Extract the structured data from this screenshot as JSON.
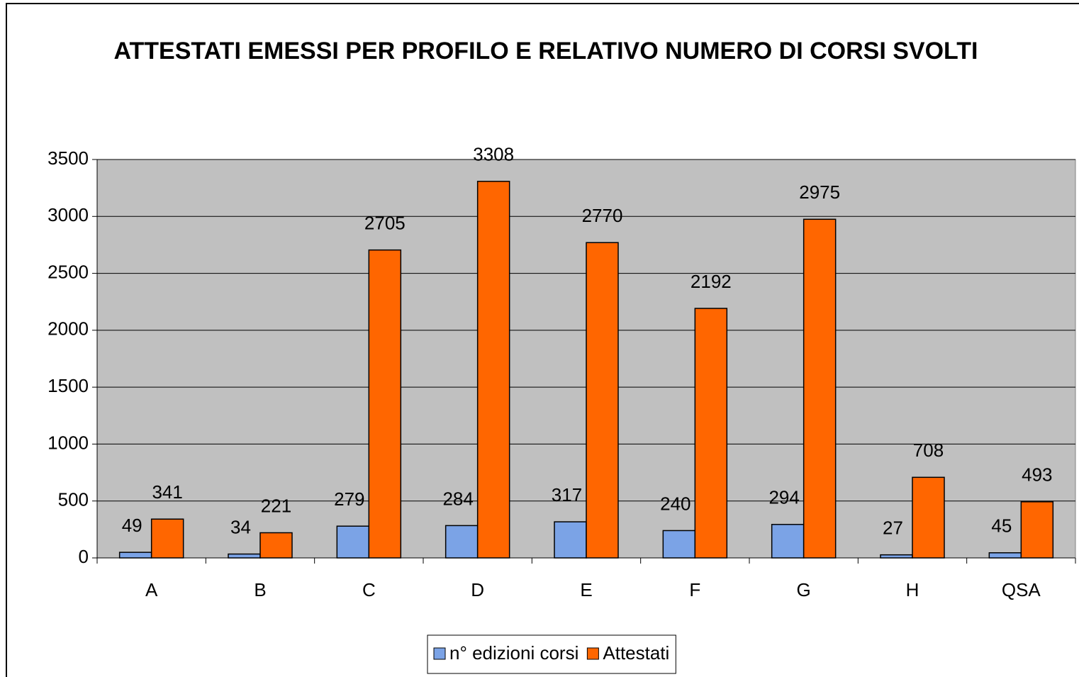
{
  "chart_data": {
    "type": "bar",
    "title": "ATTESTATI EMESSI PER PROFILO E RELATIVO NUMERO DI CORSI SVOLTI",
    "categories": [
      "A",
      "B",
      "C",
      "D",
      "E",
      "F",
      "G",
      "H",
      "QSA"
    ],
    "series": [
      {
        "name": "n° edizioni corsi",
        "color": "#7ba3e6",
        "values": [
          49,
          34,
          279,
          284,
          317,
          240,
          294,
          27,
          45
        ]
      },
      {
        "name": "Attestati",
        "color": "#ff6600",
        "values": [
          341,
          221,
          2705,
          3308,
          2770,
          2192,
          2975,
          708,
          493
        ]
      }
    ],
    "ylim": [
      0,
      3500
    ],
    "yticks": [
      0,
      500,
      1000,
      1500,
      2000,
      2500,
      3000,
      3500
    ],
    "grid": true,
    "legend": "bottom",
    "plot_background": "#c0c0c0"
  }
}
